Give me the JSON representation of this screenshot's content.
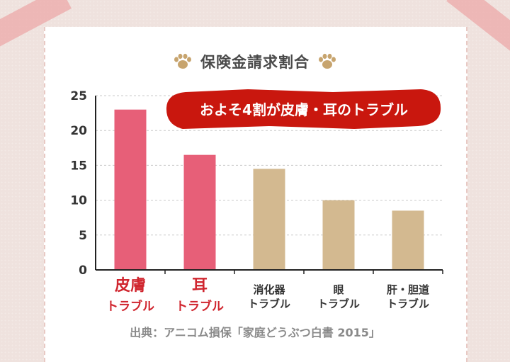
{
  "title": "保険金請求割合",
  "banner": "およそ4割が皮膚・耳のトラブル",
  "source": "出典：アニコム損保「家庭どうぶつ白書 2015」",
  "colors": {
    "highlight": "#e75f78",
    "normal": "#d3b990",
    "banner": "#c9170e",
    "highlight_label": "#d0262f"
  },
  "chart_data": {
    "type": "bar",
    "title": "保険金請求割合",
    "categories": [
      {
        "line1": "皮膚",
        "line2": "トラブル",
        "highlight": true
      },
      {
        "line1": "耳",
        "line2": "トラブル",
        "highlight": true
      },
      {
        "line1": "消化器",
        "line2": "トラブル",
        "highlight": false
      },
      {
        "line1": "眼",
        "line2": "トラブル",
        "highlight": false
      },
      {
        "line1": "肝・胆道",
        "line2": "トラブル",
        "highlight": false
      }
    ],
    "values": [
      23.0,
      16.5,
      14.5,
      10.0,
      8.5
    ],
    "ylim": [
      0,
      25
    ],
    "yticks": [
      "0",
      "5",
      "10",
      "15",
      "20",
      "25"
    ],
    "grid": true,
    "annotation": "およそ4割が皮膚・耳のトラブル"
  }
}
